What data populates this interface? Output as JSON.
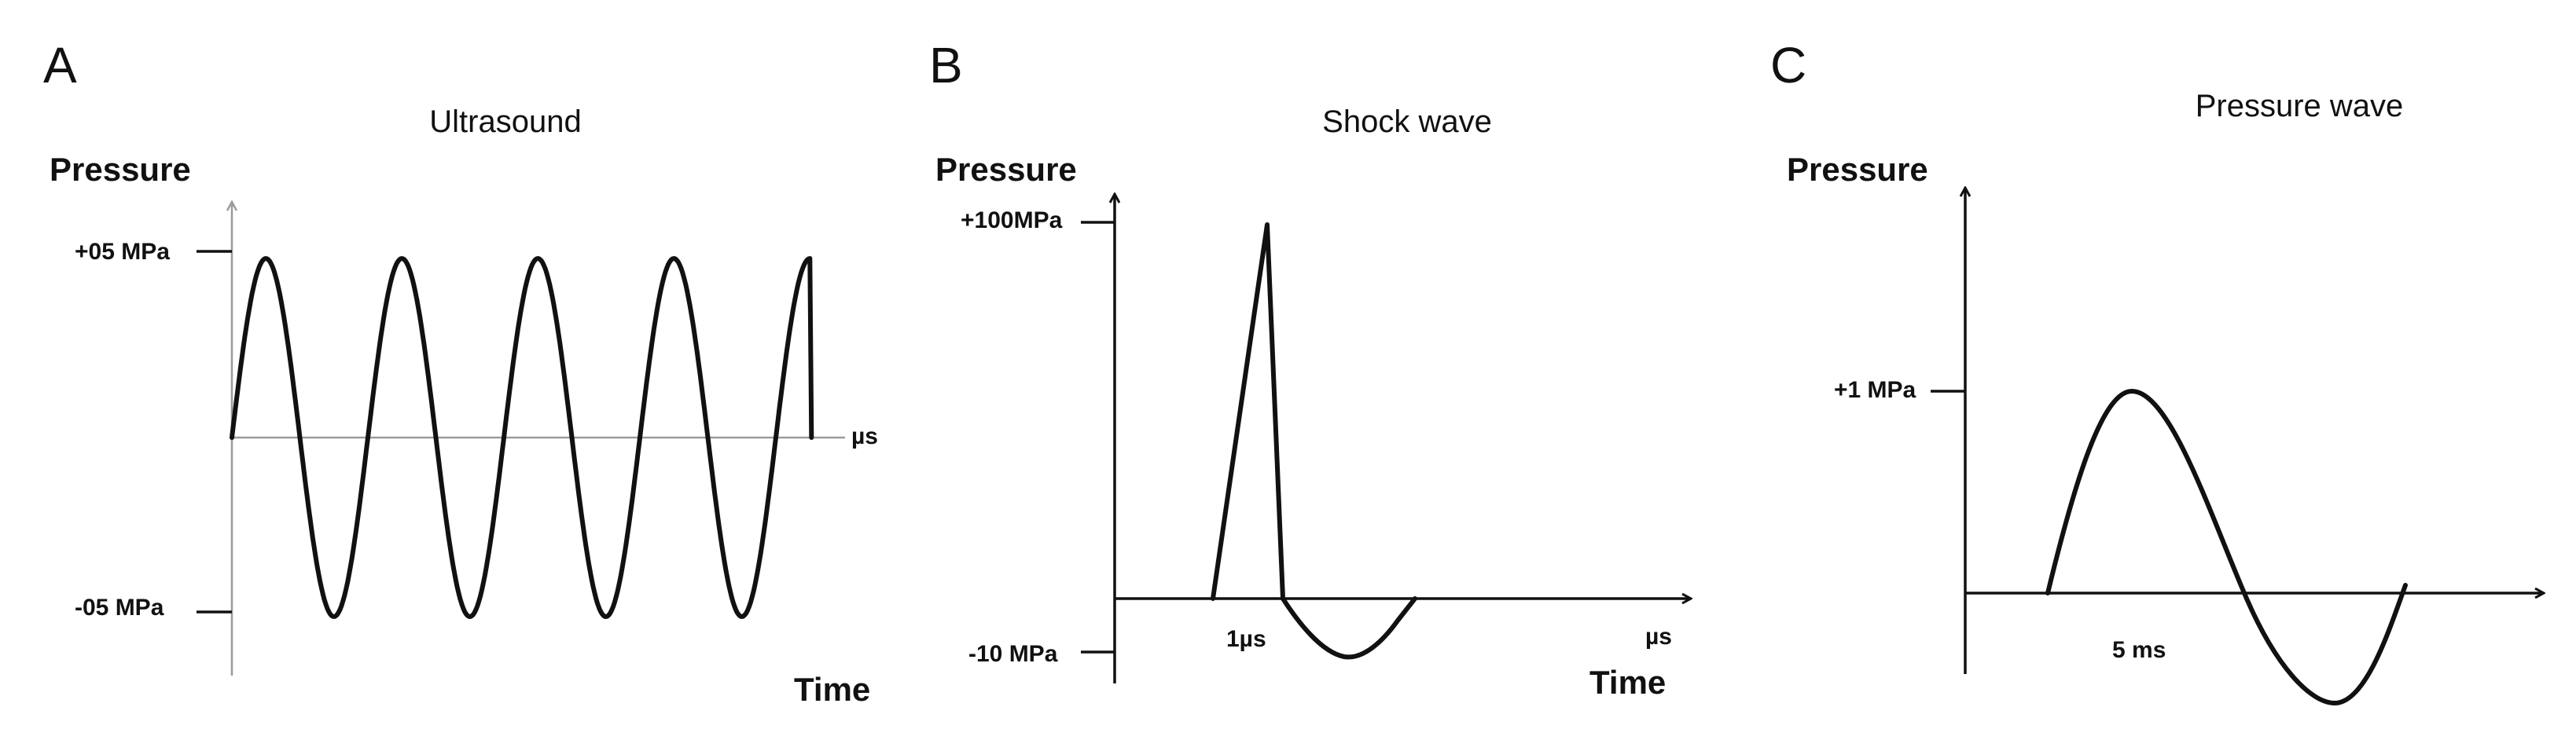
{
  "panels": [
    {
      "letter": "A",
      "title": "Ultrasound",
      "y_label": "Pressure",
      "x_label": "Time",
      "x_unit": "µs",
      "y_ticks": [
        "+05 MPa",
        "-05 MPa"
      ]
    },
    {
      "letter": "B",
      "title": "Shock wave",
      "y_label": "Pressure",
      "x_label": "Time",
      "x_unit": "µs",
      "y_ticks": [
        "+100MPa",
        "-10 MPa"
      ],
      "x_annotation": "1µs"
    },
    {
      "letter": "C",
      "title": "Pressure wave",
      "y_label": "Pressure",
      "y_ticks": [
        "+1 MPa"
      ],
      "x_annotation": "5 ms"
    }
  ],
  "colors": {
    "ink": "#111111",
    "thin_axis": "#9a9a9a",
    "background": "#ffffff"
  }
}
